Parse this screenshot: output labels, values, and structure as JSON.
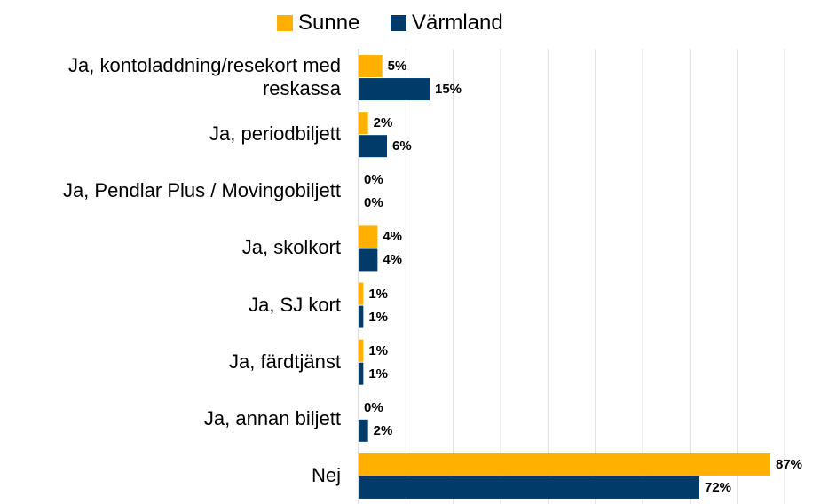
{
  "chart_data": {
    "type": "bar",
    "orientation": "horizontal",
    "categories": [
      "Ja, kontoladdning/resekort med reskassa",
      "Ja, periodbiljett",
      "Ja, Pendlar Plus / Movingobiljett",
      "Ja, skolkort",
      "Ja, SJ kort",
      "Ja, färdtjänst",
      "Ja, annan biljett",
      "Nej"
    ],
    "series": [
      {
        "name": "Sunne",
        "color": "#FFB000",
        "values": [
          5,
          2,
          0,
          4,
          1,
          1,
          0,
          87
        ],
        "value_labels": [
          "5%",
          "2%",
          "0%",
          "4%",
          "1%",
          "1%",
          "0%",
          "87%"
        ]
      },
      {
        "name": "Värmland",
        "color": "#003B69",
        "values": [
          15,
          6,
          0,
          4,
          1,
          1,
          2,
          72
        ],
        "value_labels": [
          "15%",
          "6%",
          "0%",
          "4%",
          "1%",
          "1%",
          "2%",
          "72%"
        ]
      }
    ],
    "xlim": [
      0,
      90
    ],
    "xticks": [
      0,
      10,
      20,
      30,
      40,
      50,
      60,
      70,
      80,
      90
    ],
    "grid": true,
    "legend": "top"
  }
}
